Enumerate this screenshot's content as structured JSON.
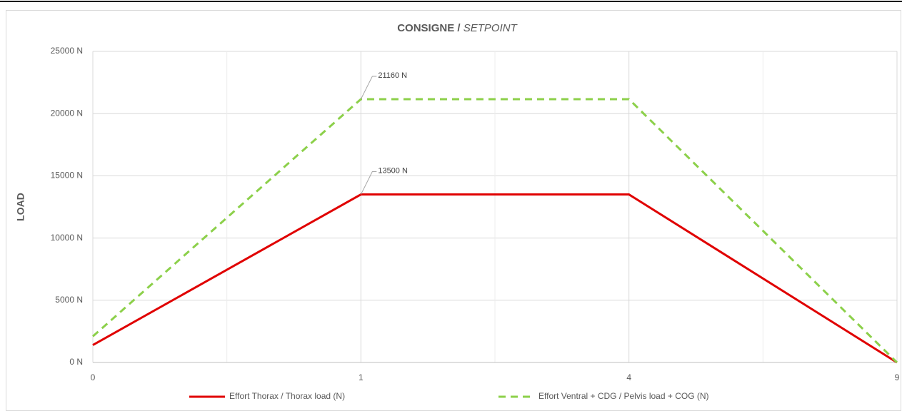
{
  "chart_data": {
    "type": "line",
    "title": "CONSIGNE /",
    "subtitle": "SETPOINT",
    "y_label": "LOAD",
    "categories": [
      "0",
      "1",
      "4",
      "9"
    ],
    "series": [
      {
        "name": "Effort Thorax /  Thorax load (N)",
        "color": "#e00000",
        "dash": false,
        "values": [
          1400,
          13500,
          13500,
          0
        ],
        "value_labels": [
          null,
          "13500 N",
          null,
          null
        ]
      },
      {
        "name": "Effort Ventral + CDG / Pelvis load + COG (N)",
        "color": "#8cd04a",
        "dash": true,
        "values": [
          2100,
          21160,
          21160,
          0
        ],
        "value_labels": [
          null,
          "21160 N",
          null,
          null
        ]
      }
    ],
    "ylim": [
      0,
      25000
    ],
    "yticks": [
      {
        "value": 0,
        "label": "0 N"
      },
      {
        "value": 5000,
        "label": "5000 N"
      },
      {
        "value": 10000,
        "label": "10000 N"
      },
      {
        "value": 15000,
        "label": "15000 N"
      },
      {
        "value": 20000,
        "label": "20000 N"
      },
      {
        "value": 25000,
        "label": "25000 N"
      }
    ],
    "grid": true,
    "legend": "bottom"
  }
}
